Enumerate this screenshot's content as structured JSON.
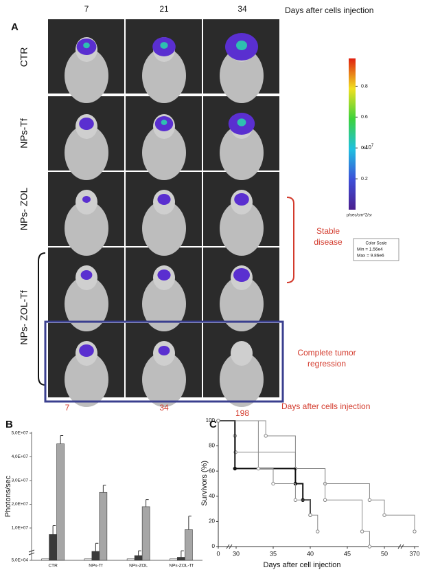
{
  "panel_a": {
    "label": "A",
    "top_days": [
      "7",
      "21",
      "34"
    ],
    "top_axis_label": "Days after cells injection",
    "rows": [
      "CTR",
      "NPs-Tf",
      "NPs- ZOL",
      "NPs- ZOL-Tf"
    ],
    "annotations": [
      "Stable disease",
      "Complete tumor regression"
    ],
    "bottom_days": [
      "7",
      "34",
      "198"
    ],
    "bottom_axis_label": "Days after cells injection",
    "colorbar": {
      "lim": [
        0,
        0.98
      ],
      "ticks": [
        0.2,
        0.4,
        0.6,
        0.8
      ],
      "multiplier": "x10",
      "exponent": "7",
      "unit": "p/sec/cm^2/sr",
      "scale_title": "Color Scale",
      "min": "Min = 1.56e4",
      "max": "Max = 9.86e6"
    }
  },
  "chart_data": [
    {
      "type": "bar",
      "label": "B",
      "ylabel": "Photons/sec",
      "categories": [
        "CTR",
        "NPs-Tf",
        "NPs-ZOL",
        "NPs-ZOL-Tf"
      ],
      "series": [
        {
          "color": "#ffffff",
          "values": [
            500000,
            500000,
            500000,
            500000
          ]
        },
        {
          "color": "#3a3a3a",
          "values": [
            8000000,
            2800000,
            1500000,
            1000000
          ],
          "errors": [
            3000000,
            2500000,
            1500000,
            2000000
          ]
        },
        {
          "color": "#a6a6a6",
          "values": [
            45500000,
            25000000,
            19000000,
            9500000
          ],
          "errors": [
            3500000,
            3000000,
            3000000,
            5500000
          ]
        }
      ],
      "ylim": [
        50000,
        50000000
      ],
      "yticks": [
        {
          "value": 50000,
          "label": "5,0E+04"
        },
        {
          "value": 10000000,
          "label": "1,0E+07"
        },
        {
          "value": 20000000,
          "label": "2,0E+07"
        },
        {
          "value": 30000000,
          "label": "3,0E+07"
        },
        {
          "value": 40000000,
          "label": "4,0E+07"
        },
        {
          "value": 50000000,
          "label": "5,0E+07"
        }
      ]
    },
    {
      "type": "step",
      "label": "C",
      "xlabel": "Days after cell injection",
      "ylabel": "Survivors (%)",
      "series": [
        {
          "color": "#888888",
          "marker": "open",
          "line_width": 1,
          "x": [
            0,
            34,
            38,
            42,
            48,
            50,
            370
          ],
          "values": [
            100,
            88,
            62,
            50,
            37,
            25,
            12
          ]
        },
        {
          "color": "#888888",
          "marker": "open",
          "line_width": 1,
          "x": [
            0,
            28,
            29,
            38,
            42,
            47,
            48
          ],
          "values": [
            100,
            88,
            75,
            62,
            37,
            12,
            0
          ]
        },
        {
          "color": "#111111",
          "marker": "filled",
          "line_width": 2,
          "x": [
            0,
            28,
            38,
            39,
            40
          ],
          "values": [
            100,
            62,
            50,
            37,
            25
          ]
        },
        {
          "color": "#888888",
          "marker": "open",
          "line_width": 1,
          "x": [
            0,
            33,
            35,
            38,
            40,
            41
          ],
          "values": [
            100,
            62,
            50,
            37,
            25,
            12
          ]
        }
      ],
      "xlim": [
        0,
        370
      ],
      "xticks": [
        0,
        30,
        35,
        40,
        45,
        50,
        370
      ],
      "ylim": [
        0,
        100
      ],
      "yticks": [
        0,
        20,
        40,
        60,
        80,
        100
      ]
    }
  ]
}
